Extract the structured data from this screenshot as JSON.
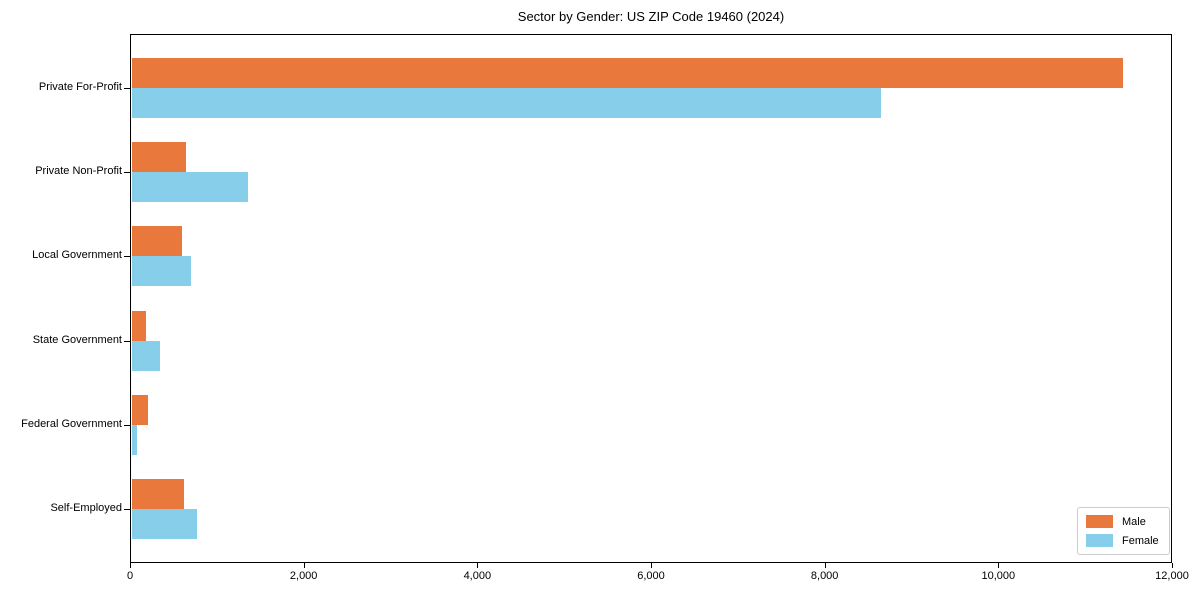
{
  "title": "Sector by Gender: US ZIP Code 19460 (2024)",
  "colors": {
    "male": "#E8783C",
    "female": "#87CEEB",
    "axis": "#000000",
    "legend_border": "#CCCCCC",
    "background": "#FFFFFF"
  },
  "legend": {
    "position": "lower right",
    "items": [
      {
        "label": "Male",
        "color": "#E8783C"
      },
      {
        "label": "Female",
        "color": "#87CEEB"
      }
    ]
  },
  "chart_data": {
    "type": "bar",
    "orientation": "horizontal",
    "title": "Sector by Gender: US ZIP Code 19460 (2024)",
    "categories": [
      "Private For-Profit",
      "Private Non-Profit",
      "Local Government",
      "State Government",
      "Federal Government",
      "Self-Employed"
    ],
    "series": [
      {
        "name": "Male",
        "color": "#E8783C",
        "values": [
          11440,
          645,
          595,
          185,
          205,
          620
        ]
      },
      {
        "name": "Female",
        "color": "#87CEEB",
        "values": [
          8645,
          1355,
          700,
          345,
          85,
          775
        ]
      }
    ],
    "xlabel": "",
    "ylabel": "",
    "xlim": [
      0,
      12000
    ],
    "x_tick_values": [
      0,
      2000,
      4000,
      6000,
      8000,
      10000,
      12000
    ],
    "x_tick_labels": [
      "0",
      "2,000",
      "4,000",
      "6,000",
      "8,000",
      "10,000",
      "12,000"
    ],
    "grid": false,
    "legend_position": "lower right"
  }
}
